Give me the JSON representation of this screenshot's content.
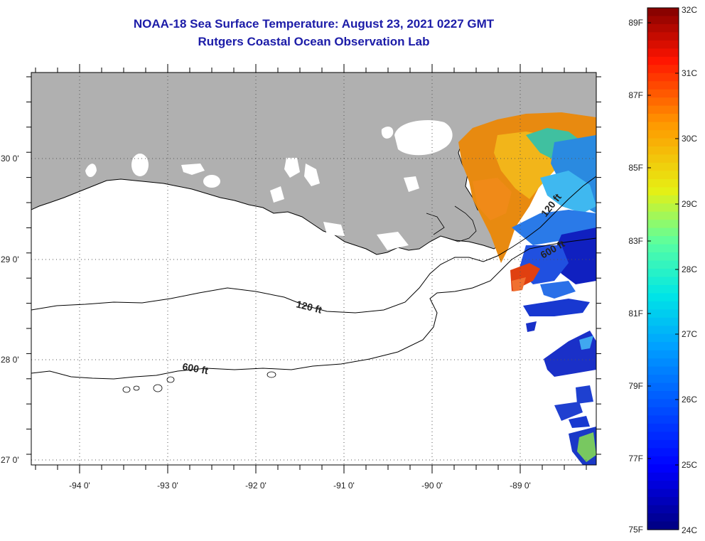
{
  "title": "NOAA-18 Sea Surface Temperature:  August 23, 2021 0227 GMT",
  "subtitle": "Rutgers Coastal Ocean Observation Lab",
  "map": {
    "lon_labels": [
      "-94 0'",
      "-93 0'",
      "-92 0'",
      "-91 0'",
      "-90 0'",
      "-89 0'"
    ],
    "lat_labels": [
      "30 0'",
      "29 0'",
      "28 0'",
      "27 0'"
    ],
    "contours": [
      {
        "label": "120 ft"
      },
      {
        "label": "120 ft"
      },
      {
        "label": "600 ft"
      },
      {
        "label": "600 ft"
      }
    ],
    "land_color": "#b0b0b0"
  },
  "colorbar": {
    "fahrenheit_labels": [
      "89F",
      "87F",
      "85F",
      "83F",
      "81F",
      "79F",
      "77F",
      "75F"
    ],
    "celsius_labels": [
      "32C",
      "31C",
      "30C",
      "29C",
      "28C",
      "27C",
      "26C",
      "25C",
      "24C"
    ],
    "range_celsius": [
      24,
      32
    ]
  }
}
